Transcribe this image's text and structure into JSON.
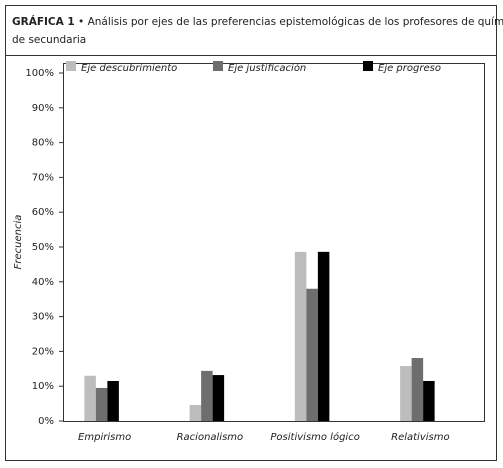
{
  "chart_data": {
    "type": "bar",
    "title_label": "GRÁFICA 1",
    "title_separator": "•",
    "title": "Análisis por ejes de las preferencias epistemológicas de los profesores de química de secundaria",
    "ylabel": "Frecuencia",
    "categories": [
      "Empirismo",
      "Racionalismo",
      "Positivismo lógico",
      "Relativismo"
    ],
    "series": [
      {
        "name": "Eje descubrimiento",
        "color": "#bdbdbd",
        "values": [
          13,
          4.6,
          48.6,
          15.8
        ]
      },
      {
        "name": "Eje justificación",
        "color": "#6e6e6e",
        "values": [
          9.5,
          14.4,
          38,
          18.1
        ]
      },
      {
        "name": "Eje progreso",
        "color": "#000000",
        "values": [
          11.5,
          13.2,
          48.6,
          11.5
        ]
      }
    ],
    "ylim": [
      0,
      100
    ],
    "yticks": [
      {
        "value": 0,
        "label": "0%"
      },
      {
        "value": 10,
        "label": "10%"
      },
      {
        "value": 20,
        "label": "20%"
      },
      {
        "value": 30,
        "label": "30%"
      },
      {
        "value": 40,
        "label": "40%"
      },
      {
        "value": 50,
        "label": "50%"
      },
      {
        "value": 60,
        "label": "60%"
      },
      {
        "value": 70,
        "label": "70%"
      },
      {
        "value": 80,
        "label": "80%"
      },
      {
        "value": 90,
        "label": "90%"
      },
      {
        "value": 100,
        "label": "100%"
      }
    ],
    "legend": "top"
  }
}
